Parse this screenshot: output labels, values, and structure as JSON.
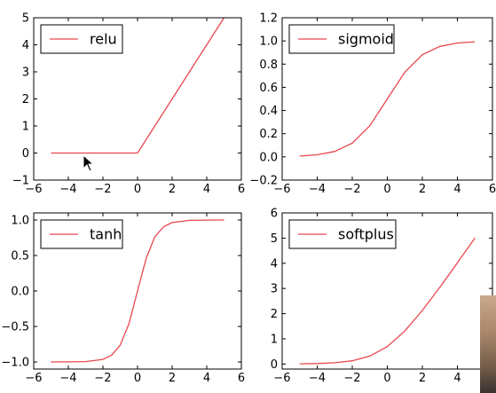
{
  "chart_data": [
    {
      "type": "line",
      "xlim": [
        -6,
        6
      ],
      "ylim": [
        -1,
        5
      ],
      "xticks": [
        "−6",
        "−4",
        "−2",
        "0",
        "2",
        "4",
        "6"
      ],
      "yticks": [
        "−1",
        "0",
        "1",
        "2",
        "3",
        "4",
        "5"
      ],
      "legend_position": "top-left",
      "grid": false,
      "series": [
        {
          "name": "relu",
          "color": "#e8474f",
          "x": [
            -5,
            -4,
            -3,
            -2,
            -1,
            0,
            1,
            2,
            3,
            4,
            5
          ],
          "y": [
            0,
            0,
            0,
            0,
            0,
            0,
            1,
            2,
            3,
            4,
            5
          ]
        }
      ]
    },
    {
      "type": "line",
      "xlim": [
        -6,
        6
      ],
      "ylim": [
        -0.2,
        1.2
      ],
      "xticks": [
        "−6",
        "−4",
        "−2",
        "0",
        "2",
        "4",
        "6"
      ],
      "yticks": [
        "−0.2",
        "0.0",
        "0.2",
        "0.4",
        "0.6",
        "0.8",
        "1.0",
        "1.2"
      ],
      "legend_position": "top-left",
      "grid": false,
      "series": [
        {
          "name": "sigmoid",
          "color": "#e8474f",
          "x": [
            -5,
            -4,
            -3,
            -2,
            -1,
            0,
            1,
            2,
            3,
            4,
            5
          ],
          "y": [
            0.007,
            0.018,
            0.047,
            0.119,
            0.269,
            0.5,
            0.731,
            0.881,
            0.953,
            0.982,
            0.993
          ]
        }
      ]
    },
    {
      "type": "line",
      "xlim": [
        -6,
        6
      ],
      "ylim": [
        -1.1,
        1.1
      ],
      "xticks": [
        "−6",
        "−4",
        "−2",
        "0",
        "2",
        "4",
        "6"
      ],
      "yticks": [
        "−1.0",
        "−0.5",
        "0.0",
        "0.5",
        "1.0"
      ],
      "ytick_values": [
        -1.0,
        -0.5,
        0.0,
        0.5,
        1.0
      ],
      "legend_position": "top-left",
      "grid": false,
      "series": [
        {
          "name": "tanh",
          "color": "#e8474f",
          "x": [
            -5,
            -4,
            -3,
            -2,
            -1.5,
            -1,
            -0.5,
            0,
            0.5,
            1,
            1.5,
            2,
            3,
            4,
            5
          ],
          "y": [
            -1.0,
            -0.999,
            -0.995,
            -0.964,
            -0.905,
            -0.762,
            -0.462,
            0,
            0.462,
            0.762,
            0.905,
            0.964,
            0.995,
            0.999,
            1.0
          ]
        }
      ]
    },
    {
      "type": "line",
      "xlim": [
        -6,
        6
      ],
      "ylim": [
        -0.2,
        6
      ],
      "xticks": [
        "−6",
        "−4",
        "−2",
        "0",
        "2",
        "4",
        "6"
      ],
      "yticks": [
        "0",
        "1",
        "2",
        "3",
        "4",
        "5",
        "6"
      ],
      "legend_position": "top-left",
      "grid": false,
      "series": [
        {
          "name": "softplus",
          "color": "#e8474f",
          "x": [
            -5,
            -4,
            -3,
            -2,
            -1,
            0,
            1,
            2,
            3,
            4,
            5
          ],
          "y": [
            0.007,
            0.018,
            0.049,
            0.127,
            0.313,
            0.693,
            1.313,
            2.127,
            3.049,
            4.018,
            5.007
          ]
        }
      ]
    }
  ]
}
